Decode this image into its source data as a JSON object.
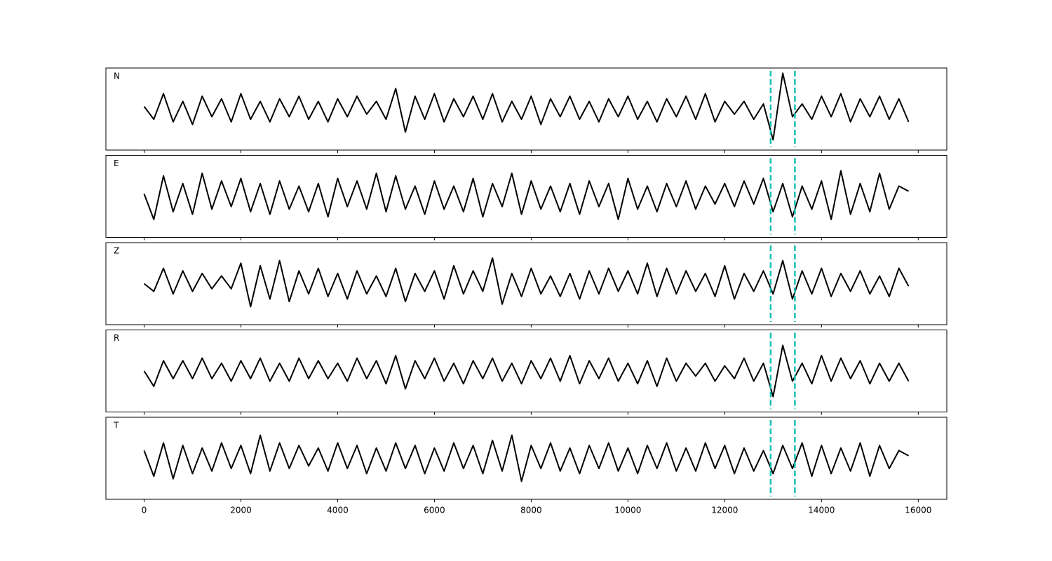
{
  "chart_data": [
    {
      "type": "line",
      "label": "N",
      "color": "#000000",
      "marker_color": "#17bfb0",
      "markers": [
        12950,
        13450
      ],
      "ylim": [
        -1.6,
        1.6
      ],
      "x": [
        0,
        200,
        400,
        600,
        800,
        1000,
        1200,
        1400,
        1600,
        1800,
        2000,
        2200,
        2400,
        2600,
        2800,
        3000,
        3200,
        3400,
        3600,
        3800,
        4000,
        4200,
        4400,
        4600,
        4800,
        5000,
        5200,
        5400,
        5600,
        5800,
        6000,
        6200,
        6400,
        6600,
        6800,
        7000,
        7200,
        7400,
        7600,
        7800,
        8000,
        8200,
        8400,
        8600,
        8800,
        9000,
        9200,
        9400,
        9600,
        9800,
        10000,
        10200,
        10400,
        10600,
        10800,
        11000,
        11200,
        11400,
        11600,
        11800,
        12000,
        12200,
        12400,
        12600,
        12800,
        13000,
        13200,
        13400,
        13600,
        13800,
        14000,
        14200,
        14400,
        14600,
        14800,
        15000,
        15200,
        15400,
        15600,
        15800
      ],
      "values": [
        0.1,
        -0.4,
        0.6,
        -0.5,
        0.3,
        -0.6,
        0.5,
        -0.3,
        0.4,
        -0.5,
        0.6,
        -0.4,
        0.3,
        -0.5,
        0.4,
        -0.3,
        0.5,
        -0.4,
        0.3,
        -0.5,
        0.4,
        -0.3,
        0.5,
        -0.2,
        0.3,
        -0.4,
        0.8,
        -0.9,
        0.5,
        -0.4,
        0.6,
        -0.5,
        0.4,
        -0.3,
        0.5,
        -0.4,
        0.6,
        -0.5,
        0.3,
        -0.4,
        0.5,
        -0.6,
        0.4,
        -0.3,
        0.5,
        -0.4,
        0.3,
        -0.5,
        0.4,
        -0.3,
        0.5,
        -0.4,
        0.3,
        -0.5,
        0.4,
        -0.3,
        0.5,
        -0.4,
        0.6,
        -0.5,
        0.3,
        -0.2,
        0.3,
        -0.4,
        0.2,
        -1.2,
        1.4,
        -0.3,
        0.2,
        -0.4,
        0.5,
        -0.3,
        0.6,
        -0.5,
        0.4,
        -0.3,
        0.5,
        -0.4,
        0.4,
        -0.5
      ]
    },
    {
      "type": "line",
      "label": "E",
      "color": "#000000",
      "marker_color": "#17bfb0",
      "markers": [
        12950,
        13450
      ],
      "ylim": [
        -1.6,
        1.6
      ],
      "x": [
        0,
        200,
        400,
        600,
        800,
        1000,
        1200,
        1400,
        1600,
        1800,
        2000,
        2200,
        2400,
        2600,
        2800,
        3000,
        3200,
        3400,
        3600,
        3800,
        4000,
        4200,
        4400,
        4600,
        4800,
        5000,
        5200,
        5400,
        5600,
        5800,
        6000,
        6200,
        6400,
        6600,
        6800,
        7000,
        7200,
        7400,
        7600,
        7800,
        8000,
        8200,
        8400,
        8600,
        8800,
        9000,
        9200,
        9400,
        9600,
        9800,
        10000,
        10200,
        10400,
        10600,
        10800,
        11000,
        11200,
        11400,
        11600,
        11800,
        12000,
        12200,
        12400,
        12600,
        12800,
        13000,
        13200,
        13400,
        13600,
        13800,
        14000,
        14200,
        14400,
        14600,
        14800,
        15000,
        15200,
        15400,
        15600,
        15800
      ],
      "values": [
        0.1,
        -0.9,
        0.8,
        -0.6,
        0.5,
        -0.7,
        0.9,
        -0.5,
        0.6,
        -0.4,
        0.7,
        -0.6,
        0.5,
        -0.7,
        0.6,
        -0.5,
        0.4,
        -0.6,
        0.5,
        -0.8,
        0.7,
        -0.4,
        0.6,
        -0.5,
        0.9,
        -0.6,
        0.8,
        -0.5,
        0.4,
        -0.7,
        0.6,
        -0.5,
        0.4,
        -0.6,
        0.7,
        -0.8,
        0.5,
        -0.4,
        0.9,
        -0.7,
        0.6,
        -0.5,
        0.4,
        -0.6,
        0.5,
        -0.7,
        0.6,
        -0.4,
        0.5,
        -0.9,
        0.7,
        -0.5,
        0.4,
        -0.6,
        0.5,
        -0.4,
        0.6,
        -0.5,
        0.4,
        -0.3,
        0.5,
        -0.4,
        0.6,
        -0.3,
        0.7,
        -0.6,
        0.5,
        -0.8,
        0.4,
        -0.5,
        0.6,
        -0.9,
        1.0,
        -0.7,
        0.5,
        -0.6,
        0.9,
        -0.5,
        0.4,
        0.2
      ]
    },
    {
      "type": "line",
      "label": "Z",
      "color": "#000000",
      "marker_color": "#17bfb0",
      "markers": [
        12950,
        13450
      ],
      "ylim": [
        -1.6,
        1.6
      ],
      "x": [
        0,
        200,
        400,
        600,
        800,
        1000,
        1200,
        1400,
        1600,
        1800,
        2000,
        2200,
        2400,
        2600,
        2800,
        3000,
        3200,
        3400,
        3600,
        3800,
        4000,
        4200,
        4400,
        4600,
        4800,
        5000,
        5200,
        5400,
        5600,
        5800,
        6000,
        6200,
        6400,
        6600,
        6800,
        7000,
        7200,
        7400,
        7600,
        7800,
        8000,
        8200,
        8400,
        8600,
        8800,
        9000,
        9200,
        9400,
        9600,
        9800,
        10000,
        10200,
        10400,
        10600,
        10800,
        11000,
        11200,
        11400,
        11600,
        11800,
        12000,
        12200,
        12400,
        12600,
        12800,
        13000,
        13200,
        13400,
        13600,
        13800,
        14000,
        14200,
        14400,
        14600,
        14800,
        15000,
        15200,
        15400,
        15600,
        15800
      ],
      "values": [
        0.0,
        -0.3,
        0.6,
        -0.4,
        0.5,
        -0.3,
        0.4,
        -0.2,
        0.3,
        -0.2,
        0.8,
        -0.9,
        0.7,
        -0.6,
        0.9,
        -0.7,
        0.5,
        -0.4,
        0.6,
        -0.5,
        0.4,
        -0.6,
        0.5,
        -0.4,
        0.3,
        -0.5,
        0.6,
        -0.7,
        0.4,
        -0.3,
        0.5,
        -0.6,
        0.7,
        -0.4,
        0.5,
        -0.3,
        1.0,
        -0.8,
        0.4,
        -0.5,
        0.6,
        -0.4,
        0.3,
        -0.5,
        0.4,
        -0.6,
        0.5,
        -0.4,
        0.6,
        -0.3,
        0.5,
        -0.4,
        0.8,
        -0.5,
        0.6,
        -0.4,
        0.5,
        -0.3,
        0.4,
        -0.5,
        0.7,
        -0.6,
        0.4,
        -0.3,
        0.5,
        -0.4,
        0.9,
        -0.6,
        0.5,
        -0.4,
        0.6,
        -0.5,
        0.4,
        -0.3,
        0.5,
        -0.4,
        0.3,
        -0.5,
        0.6,
        -0.1
      ]
    },
    {
      "type": "line",
      "label": "R",
      "color": "#000000",
      "marker_color": "#17bfb0",
      "markers": [
        12950,
        13450
      ],
      "ylim": [
        -1.6,
        1.6
      ],
      "x": [
        0,
        200,
        400,
        600,
        800,
        1000,
        1200,
        1400,
        1600,
        1800,
        2000,
        2200,
        2400,
        2600,
        2800,
        3000,
        3200,
        3400,
        3600,
        3800,
        4000,
        4200,
        4400,
        4600,
        4800,
        5000,
        5200,
        5400,
        5600,
        5800,
        6000,
        6200,
        6400,
        6600,
        6800,
        7000,
        7200,
        7400,
        7600,
        7800,
        8000,
        8200,
        8400,
        8600,
        8800,
        9000,
        9200,
        9400,
        9600,
        9800,
        10000,
        10200,
        10400,
        10600,
        10800,
        11000,
        11200,
        11400,
        11600,
        11800,
        12000,
        12200,
        12400,
        12600,
        12800,
        13000,
        13200,
        13400,
        13600,
        13800,
        14000,
        14200,
        14400,
        14600,
        14800,
        15000,
        15200,
        15400,
        15600,
        15800
      ],
      "values": [
        0.0,
        -0.6,
        0.4,
        -0.3,
        0.4,
        -0.3,
        0.5,
        -0.3,
        0.3,
        -0.4,
        0.4,
        -0.3,
        0.5,
        -0.4,
        0.3,
        -0.4,
        0.5,
        -0.3,
        0.4,
        -0.3,
        0.3,
        -0.4,
        0.5,
        -0.3,
        0.4,
        -0.5,
        0.6,
        -0.7,
        0.4,
        -0.3,
        0.5,
        -0.4,
        0.3,
        -0.5,
        0.4,
        -0.3,
        0.5,
        -0.4,
        0.3,
        -0.5,
        0.4,
        -0.3,
        0.5,
        -0.4,
        0.6,
        -0.5,
        0.4,
        -0.3,
        0.5,
        -0.4,
        0.3,
        -0.5,
        0.4,
        -0.6,
        0.5,
        -0.4,
        0.3,
        -0.2,
        0.3,
        -0.4,
        0.2,
        -0.3,
        0.5,
        -0.4,
        0.3,
        -1.0,
        1.0,
        -0.4,
        0.3,
        -0.5,
        0.6,
        -0.4,
        0.5,
        -0.3,
        0.4,
        -0.5,
        0.3,
        -0.4,
        0.3,
        -0.4
      ]
    },
    {
      "type": "line",
      "label": "T",
      "color": "#000000",
      "marker_color": "#17bfb0",
      "markers": [
        12950,
        13450
      ],
      "ylim": [
        -1.6,
        1.6
      ],
      "xlim": [
        -790,
        16590
      ],
      "xticks": [
        0,
        2000,
        4000,
        6000,
        8000,
        10000,
        12000,
        14000,
        16000
      ],
      "x": [
        0,
        200,
        400,
        600,
        800,
        1000,
        1200,
        1400,
        1600,
        1800,
        2000,
        2200,
        2400,
        2600,
        2800,
        3000,
        3200,
        3400,
        3600,
        3800,
        4000,
        4200,
        4400,
        4600,
        4800,
        5000,
        5200,
        5400,
        5600,
        5800,
        6000,
        6200,
        6400,
        6600,
        6800,
        7000,
        7200,
        7400,
        7600,
        7800,
        8000,
        8200,
        8400,
        8600,
        8800,
        9000,
        9200,
        9400,
        9600,
        9800,
        10000,
        10200,
        10400,
        10600,
        10800,
        11000,
        11200,
        11400,
        11600,
        11800,
        12000,
        12200,
        12400,
        12600,
        12800,
        13000,
        13200,
        13400,
        13600,
        13800,
        14000,
        14200,
        14400,
        14600,
        14800,
        15000,
        15200,
        15400,
        15600,
        15800
      ],
      "values": [
        0.3,
        -0.7,
        0.6,
        -0.8,
        0.5,
        -0.6,
        0.4,
        -0.5,
        0.6,
        -0.4,
        0.5,
        -0.6,
        0.9,
        -0.5,
        0.6,
        -0.4,
        0.5,
        -0.3,
        0.4,
        -0.5,
        0.6,
        -0.4,
        0.5,
        -0.6,
        0.4,
        -0.5,
        0.6,
        -0.4,
        0.5,
        -0.6,
        0.4,
        -0.5,
        0.6,
        -0.4,
        0.5,
        -0.6,
        0.7,
        -0.5,
        0.9,
        -0.9,
        0.5,
        -0.4,
        0.6,
        -0.5,
        0.4,
        -0.6,
        0.5,
        -0.4,
        0.6,
        -0.5,
        0.4,
        -0.6,
        0.5,
        -0.4,
        0.6,
        -0.5,
        0.4,
        -0.5,
        0.6,
        -0.4,
        0.5,
        -0.6,
        0.4,
        -0.5,
        0.3,
        -0.6,
        0.5,
        -0.4,
        0.6,
        -0.7,
        0.5,
        -0.6,
        0.4,
        -0.5,
        0.6,
        -0.7,
        0.5,
        -0.4,
        0.3,
        0.1
      ]
    }
  ]
}
